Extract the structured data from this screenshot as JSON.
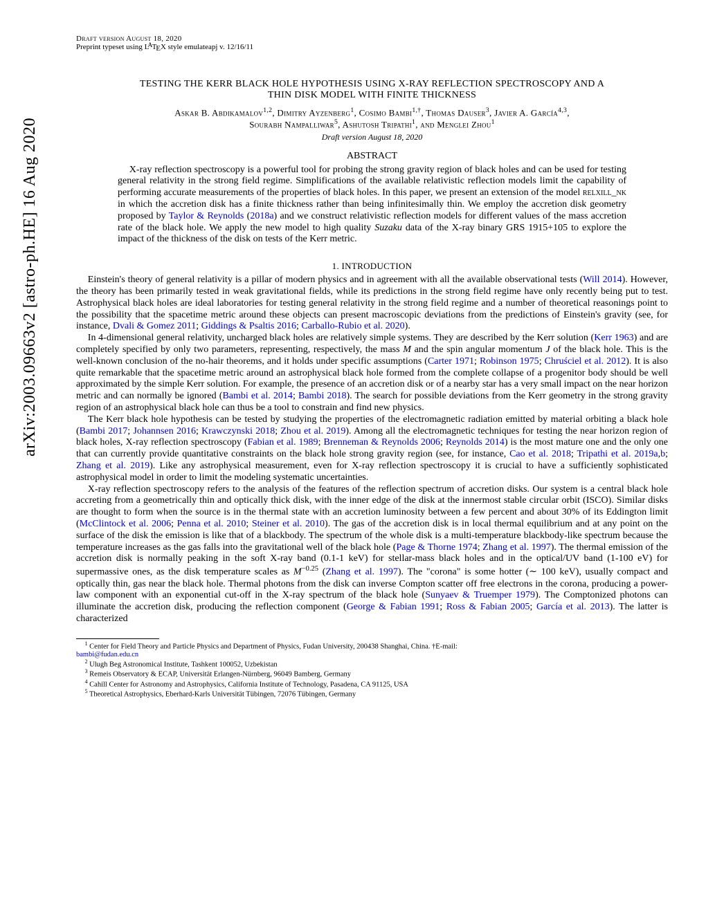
{
  "arxiv": "arXiv:2003.09663v2  [astro-ph.HE]  16 Aug 2020",
  "header": {
    "draft": "Draft version August 18, 2020",
    "preprint_prefix": "Preprint typeset using L",
    "preprint_a": "A",
    "preprint_suffix": "T",
    "preprint_e": "E",
    "preprint_end": "X style emulateapj v. 12/16/11"
  },
  "title_line1": "TESTING THE KERR BLACK HOLE HYPOTHESIS USING X-RAY REFLECTION SPECTROSCOPY AND A",
  "title_line2": "THIN DISK MODEL WITH FINITE THICKNESS",
  "authors_line1": "Askar B. Abdikamalov",
  "aff1": "1,2",
  "a2": ", Dimitry Ayzenberg",
  "aff2": "1",
  "a3": ", Cosimo Bambi",
  "aff3": "1,†",
  "a4": ", Thomas Dauser",
  "aff4": "3",
  "a5": ", Javier A. García",
  "aff5": "4,3",
  "comma5": ",",
  "a6": "Sourabh Nampalliwar",
  "aff6": "5",
  "a7": ", Ashutosh Tripathi",
  "aff7": "1",
  "a8": ", and Menglei Zhou",
  "aff8": "1",
  "date": "Draft version August 18, 2020",
  "abstract_heading": "ABSTRACT",
  "abstract": {
    "t1": "X-ray reflection spectroscopy is a powerful tool for probing the strong gravity region of black holes and can be used for testing general relativity in the strong field regime. Simplifications of the available relativistic reflection models limit the capability of performing accurate measurements of the properties of black holes. In this paper, we present an extension of the model ",
    "relxill": "relxill_nk",
    "t2": " in which the accretion disk has a finite thickness rather than being infinitesimally thin. We employ the accretion disk geometry proposed by ",
    "ref1": "Taylor & Reynolds",
    "nbsp1": " (",
    "year1": "2018a",
    "t3": ") and we construct relativistic reflection models for different values of the mass accretion rate of the black hole. We apply the new model to high quality ",
    "suzaku": "Suzaku",
    "t4": " data of the X-ray binary GRS 1915+105 to explore the impact of the thickness of the disk on tests of the Kerr metric."
  },
  "section1": "1. INTRODUCTION",
  "para1": {
    "t1": "Einstein's theory of general relativity is a pillar of modern physics and in agreement with all the available observational tests (",
    "r1": "Will 2014",
    "t2": "). However, the theory has been primarily tested in weak gravitational fields, while its predictions in the strong field regime have only recently being put to test. Astrophysical black holes are ideal laboratories for testing general relativity in the strong field regime and a number of theoretical reasonings point to the possibility that the spacetime metric around these objects can present macroscopic deviations from the predictions of Einstein's gravity (see, for instance, ",
    "r2": "Dvali & Gomez 2011",
    "t3": "; ",
    "r3": "Giddings & Psaltis 2016",
    "t4": "; ",
    "r4": "Carballo-Rubio et al. 2020",
    "t5": ")."
  },
  "para2": {
    "t1": "In 4-dimensional general relativity, uncharged black holes are relatively simple systems. They are described by the Kerr solution (",
    "r1": "Kerr 1963",
    "t2": ") and are completely specified by only two parameters, representing, respectively, the mass ",
    "m": "M",
    "t3": " and the spin angular momentum ",
    "j": "J",
    "t4": " of the black hole. This is the well-known conclusion of the no-hair theorems, and it holds under specific assumptions (",
    "r2": "Carter 1971",
    "t5": "; ",
    "r3": "Robinson 1975",
    "t6": "; ",
    "r4": "Chruściel et al. 2012",
    "t7": "). It is also quite remarkable that the spacetime metric around an astrophysical black hole formed from the complete collapse of a progenitor body should be well approximated by the simple Kerr solution. For example, the presence of an accretion disk or of a nearby star has a very small impact on the near horizon metric and can normally be ignored (",
    "r5": "Bambi et al. 2014",
    "t8": "; ",
    "r6": "Bambi 2018",
    "t9": "). The search for possible deviations from the Kerr geometry in the strong gravity region of an astrophysical black hole can thus be a tool to constrain and find new physics."
  },
  "para3": {
    "t1": "The Kerr black hole hypothesis can be tested by studying the properties of the electromagnetic radiation emitted by material orbiting a black hole (",
    "r1": "Bambi 2017",
    "t2": "; ",
    "r2": "Johannsen 2016",
    "t3": "; ",
    "r3": "Krawczynski 2018",
    "t4": "; ",
    "r4": "Zhou et al. 2019",
    "t5": "). Among all the electromagnetic techniques for testing the near horizon region of black holes, X-ray reflection spectroscopy (",
    "r5": "Fabian et al. 1989",
    "t6": "; ",
    "r6": "Brenneman & Reynolds 2006",
    "t7": "; ",
    "r7": "Reynolds 2014",
    "t8": ") is the most mature one and the only one that can currently provide quantitative constraints on the black hole strong gravity region (see, for instance, ",
    "r8": "Cao et al. 2018",
    "t9": "; ",
    "r9": "Tripathi et al. 2019a",
    "t10": ",",
    "r10": "b",
    "t11": "; ",
    "r11": "Zhang et al. 2019",
    "t12": "). Like any astrophysical measurement, even for X-ray reflection spectroscopy it is crucial to have a sufficiently sophisticated astrophysical model in order to limit the modeling systematic uncertainties."
  },
  "para4": {
    "t1": "X-ray reflection spectroscopy refers to the analysis of the features of the reflection spectrum of accretion disks. Our system is a central black hole accreting from a geometrically thin and optically thick disk, with the inner edge of the disk at the innermost stable circular orbit (ISCO). Similar disks are thought to form when the source is in the thermal state with an accretion luminosity between a few percent and about 30% of its Eddington limit (",
    "r1": "McClintock et al. 2006",
    "t2": "; ",
    "r2": "Penna et al. 2010",
    "t3": "; ",
    "r3": "Steiner et al. 2010",
    "t4": "). The gas of the accretion disk is in local thermal equilibrium and at any point on the surface of the disk the emission is like that of a blackbody. The spectrum of the whole disk is a multi-temperature blackbody-like spectrum because the temperature increases as the gas falls into the gravitational well of the black hole (",
    "r4": "Page & Thorne 1974",
    "t5": "; ",
    "r5": "Zhang et al. 1997",
    "t6": "). The thermal emission of the accretion disk is normally peaking in the soft X-ray band (0.1-1 keV) for stellar-mass black holes and in the optical/UV band (1-100 eV) for supermassive ones, as the disk temperature scales as ",
    "mexp": "M",
    "exp": "−0.25",
    "t7": " (",
    "r6": "Zhang et al. 1997",
    "t8": "). The \"corona\" is some hotter (∼ 100 keV), usually compact and optically thin, gas near the black hole. Thermal photons from the disk can inverse Compton scatter off free electrons in the corona, producing a power-law component with an exponential cut-off in the X-ray spectrum of the black hole (",
    "r7": "Sunyaev & Truemper 1979",
    "t9": "). The Comptonized photons can illuminate the accretion disk, producing the reflection component (",
    "r8": "George & Fabian 1991",
    "t10": "; ",
    "r9": "Ross & Fabian 2005",
    "t11": "; ",
    "r10": "García et al. 2013",
    "t12": "). The latter is characterized"
  },
  "footnotes": {
    "f1a": "Center for Field Theory and Particle Physics and Department of Physics, Fudan University, 200438 Shanghai, China.  †E-mail:",
    "f1b": "bambi@fudan.edu.cn",
    "f2": "Ulugh Beg Astronomical Institute, Tashkent 100052, Uzbekistan",
    "f3": "Remeis Observatory & ECAP, Universität Erlangen-Nürnberg, 96049 Bamberg, Germany",
    "f4": "Cahill Center for Astronomy and Astrophysics, California Institute of Technology, Pasadena, CA 91125, USA",
    "f5": "Theoretical Astrophysics, Eberhard-Karls Universität Tübingen, 72076 Tübingen, Germany"
  }
}
